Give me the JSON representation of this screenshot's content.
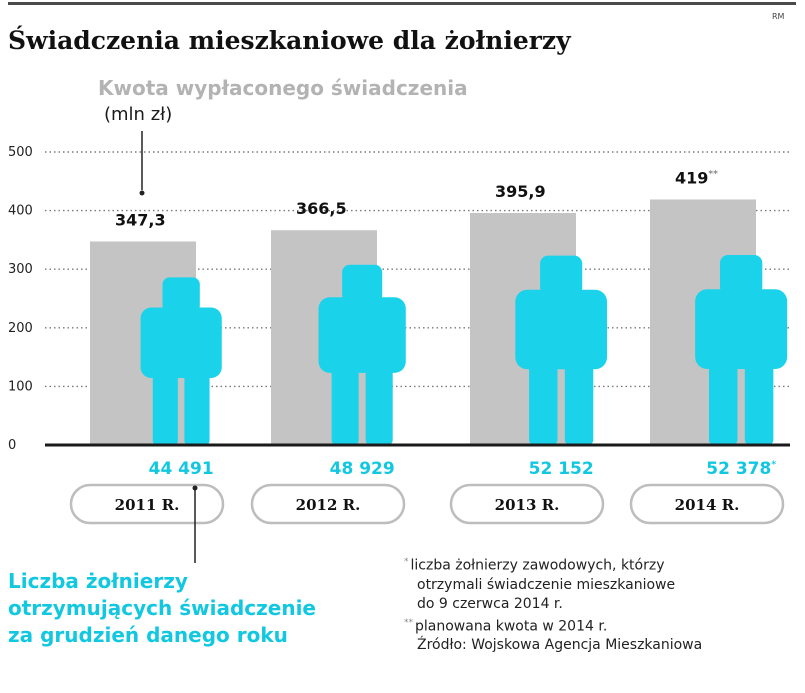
{
  "credit": "RM",
  "title": "Świadczenia mieszkaniowe dla żołnierzy",
  "colors": {
    "bar": "#c4c4c4",
    "figure": "#1ad3ea",
    "accent": "#12c8e0",
    "grid": "#7a7a7a"
  },
  "chart_data": {
    "type": "bar",
    "categories": [
      "2011 R.",
      "2012 R.",
      "2013 R.",
      "2014 R."
    ],
    "ylim": [
      0,
      500
    ],
    "yticks": [
      0,
      100,
      200,
      300,
      400,
      500
    ],
    "ylabel": "Kwota wypłaconego świadczenia",
    "yunit": "(mln zł)",
    "xlabel_lines": [
      "Liczba żołnierzy",
      "otrzymujących świadczenie",
      "za grudzień danego roku"
    ],
    "series": [
      {
        "name": "Kwota wypłaconego świadczenia",
        "values": [
          347.3,
          366.5,
          395.9,
          419
        ],
        "labels": [
          "347,3",
          "366,5",
          "395,9",
          "419"
        ],
        "marks": [
          "",
          "",
          "",
          "**"
        ]
      },
      {
        "name": "Liczba żołnierzy otrzymujących świadczenie za grudzień danego roku",
        "values": [
          44491,
          48929,
          52152,
          52378
        ],
        "labels": [
          "44 491",
          "48 929",
          "52 152",
          "52 378"
        ],
        "marks": [
          "",
          "",
          "",
          "*"
        ]
      }
    ],
    "grid": true
  },
  "notes": [
    {
      "mark": "*",
      "lines": [
        "liczba żołnierzy zawodowych, którzy",
        "otrzymali świadczenie mieszkaniowe",
        "do 9 czerwca 2014 r."
      ]
    },
    {
      "mark": "**",
      "lines": [
        "planowana kwota w 2014 r."
      ]
    }
  ],
  "source": "Źródło: Wojskowa Agencja Mieszkaniowa"
}
